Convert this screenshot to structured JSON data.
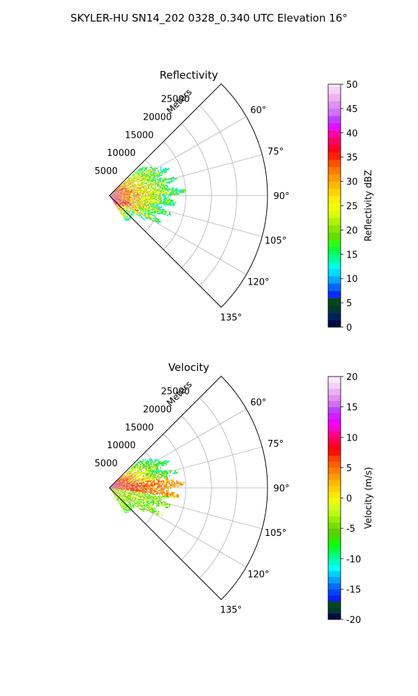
{
  "suptitle": "SKYLER-HU  SN14_202  0328_0.340 UTC Elevation 16°",
  "chart_data": [
    {
      "type": "heatmap",
      "projection": "polar-sector",
      "title": "Reflectivity",
      "range_axis_label": "Meters",
      "range_ticks": [
        5000,
        10000,
        15000,
        20000,
        25000
      ],
      "range_tick_labels": [
        "5000",
        "10000",
        "15000",
        "20000",
        "25000"
      ],
      "rlim": [
        0,
        31000
      ],
      "azimuth_range_deg": [
        45,
        135
      ],
      "azimuth_ticks": [
        60,
        75,
        90,
        105,
        120,
        135
      ],
      "azimuth_tick_labels": [
        "60°",
        "75°",
        "90°",
        "105°",
        "120°",
        "135°"
      ],
      "grid": true,
      "colorbar": {
        "label": "Reflectivity dBZ",
        "range": [
          0,
          50
        ],
        "ticks": [
          0,
          5,
          10,
          15,
          20,
          25,
          30,
          35,
          40,
          45,
          50
        ],
        "tick_labels": [
          "0",
          "5",
          "10",
          "15",
          "20",
          "25",
          "30",
          "35",
          "40",
          "45",
          "50"
        ],
        "colormap": "pyart_NWSRef-like"
      }
    },
    {
      "type": "heatmap",
      "projection": "polar-sector",
      "title": "Velocity",
      "range_axis_label": "Meters",
      "range_ticks": [
        5000,
        10000,
        15000,
        20000,
        25000
      ],
      "range_tick_labels": [
        "5000",
        "10000",
        "15000",
        "20000",
        "25000"
      ],
      "rlim": [
        0,
        31000
      ],
      "azimuth_range_deg": [
        45,
        135
      ],
      "azimuth_ticks": [
        60,
        75,
        90,
        105,
        120,
        135
      ],
      "azimuth_tick_labels": [
        "60°",
        "75°",
        "90°",
        "105°",
        "120°",
        "135°"
      ],
      "grid": true,
      "colorbar": {
        "label": "Velocity (m/s)",
        "range": [
          -20,
          20
        ],
        "ticks": [
          -20,
          -15,
          -10,
          -5,
          0,
          5,
          10,
          15,
          20
        ],
        "tick_labels": [
          "-20",
          "-15",
          "-10",
          "-5",
          "0",
          "5",
          "10",
          "15",
          "20"
        ],
        "colormap": "pyart_NWSVel-like"
      }
    }
  ]
}
